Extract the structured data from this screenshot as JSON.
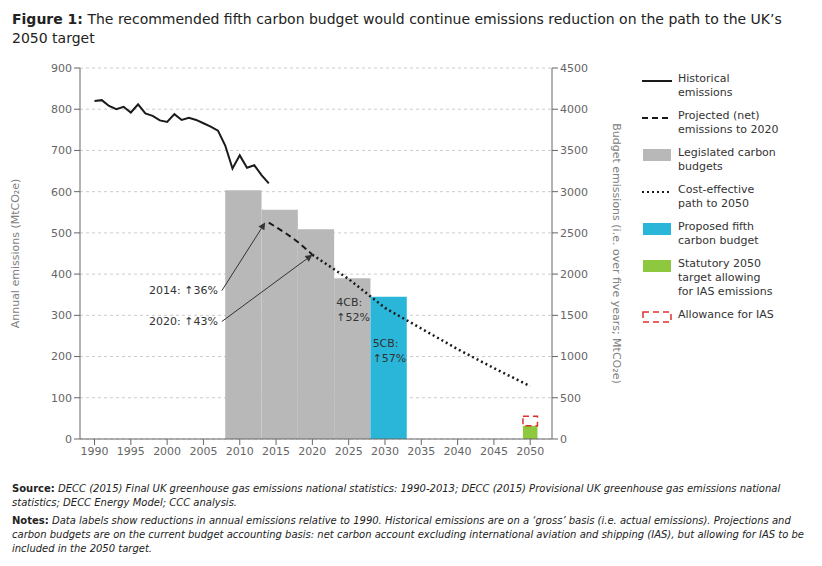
{
  "chart_data": {
    "type": "line",
    "title": "Figure 1: The recommended fifth carbon budget would continue emissions reduction on the path to the UK’s 2050 target",
    "footnotes": [
      "Source: DECC (2015) Final UK greenhouse gas emissions national statistics: 1990-2013; DECC (2015) Provisional UK greenhouse gas emissions national statistics; DECC Energy Model; CCC analysis.",
      "Notes: Data labels show reductions in annual emissions relative to 1990. Historical emissions are on a ‘gross’ basis (i.e. actual emissions). Projections and carbon budgets are on the current budget accounting basis: net carbon account excluding international aviation and shipping (IAS), but allowing for IAS to be included in the 2050 target."
    ],
    "xlim": [
      1988,
      2053
    ],
    "xticks": [
      1990,
      1995,
      2000,
      2005,
      2010,
      2015,
      2020,
      2025,
      2030,
      2035,
      2040,
      2045,
      2050
    ],
    "ylim": [
      0,
      900
    ],
    "yticks": [
      0,
      100,
      200,
      300,
      400,
      500,
      600,
      700,
      800,
      900
    ],
    "y2lim": [
      0,
      4500
    ],
    "y2ticks": [
      0,
      500,
      1000,
      1500,
      2000,
      2500,
      3000,
      3500,
      4000,
      4500
    ],
    "ylabel": "Annual emissions (MtCO₂e)",
    "y2label": "Budget emissions (i.e. over five years; MtCO₂e)",
    "grid": true,
    "stacked": true,
    "legend": "right",
    "series": [
      {
        "name": "Historical\nemissions",
        "type": "line",
        "line_style": "solid",
        "color": "#1a1a1a",
        "x": [
          1990,
          1991,
          1992,
          1993,
          1994,
          1995,
          1996,
          1997,
          1998,
          1999,
          2000,
          2001,
          2002,
          2003,
          2004,
          2005,
          2006,
          2007,
          2008,
          2009,
          2010,
          2011,
          2012,
          2013,
          2014
        ],
        "values": [
          820,
          822,
          808,
          800,
          806,
          792,
          812,
          790,
          784,
          773,
          769,
          788,
          774,
          779,
          774,
          766,
          758,
          748,
          712,
          656,
          688,
          658,
          664,
          640,
          620
        ]
      },
      {
        "name": "Projected (net)\nemissions to 2020",
        "type": "line",
        "line_style": "dashed",
        "color": "#1a1a1a",
        "x": [
          2014,
          2015,
          2016,
          2017,
          2018,
          2019,
          2020
        ],
        "values": [
          525,
          514,
          503,
          491,
          478,
          463,
          447
        ]
      },
      {
        "name": "Legislated carbon\nbudgets",
        "type": "bar",
        "axis": "y2",
        "color": "#b8b8b8",
        "x": [
          2008,
          2013,
          2018,
          2023
        ],
        "x_end": [
          2013,
          2018,
          2023,
          2028
        ],
        "values": [
          3018,
          2782,
          2544,
          1950
        ]
      },
      {
        "name": "Cost-effective\npath to 2050",
        "type": "line",
        "line_style": "dotted",
        "color": "#1a1a1a",
        "x": [
          2020,
          2025,
          2030,
          2035,
          2040,
          2045,
          2050
        ],
        "values": [
          447,
          388,
          318,
          268,
          218,
          172,
          128
        ]
      },
      {
        "name": "Proposed fifth\ncarbon budget",
        "type": "bar",
        "axis": "y2",
        "color": "#29b6d8",
        "x": [
          2028
        ],
        "x_end": [
          2033
        ],
        "values": [
          1725
        ]
      },
      {
        "name": "Statutory 2050\ntarget allowing\nfor IAS emissions",
        "type": "bar",
        "axis": "y2",
        "color": "#8dc83f",
        "x": [
          2049
        ],
        "x_end": [
          2051
        ],
        "values": [
          160
        ]
      },
      {
        "name": "Allowance for IAS",
        "type": "bar",
        "axis": "y2",
        "color": "#e03030",
        "line_style": "dashed",
        "x": [
          2049
        ],
        "x_end": [
          2051
        ],
        "values": [
          115
        ]
      }
    ],
    "annotations": [
      {
        "text": "2014: ↑36%",
        "x": 1997.5,
        "y": 360,
        "arrow_x": 2013.5,
        "arrow_y": 525
      },
      {
        "text": "2020: ↑43%",
        "x": 1997.5,
        "y": 285,
        "arrow_x": 2020,
        "arrow_y": 447
      },
      {
        "text": "4CB:\n↑52%",
        "x": 2023.3,
        "y": 315
      },
      {
        "text": "5CB:\n↑57%",
        "x": 2028.3,
        "y": 215
      }
    ]
  }
}
